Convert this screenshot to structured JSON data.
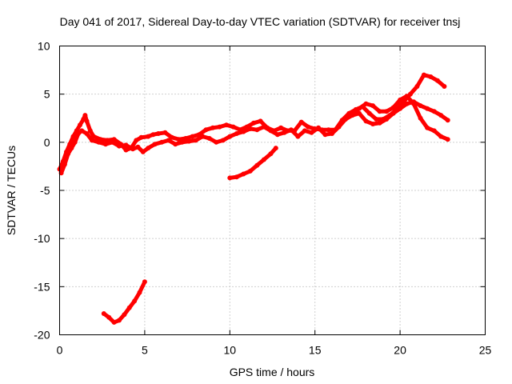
{
  "chart_data": {
    "type": "scatter",
    "title": "Day 041 of 2017, Sidereal Day-to-day VTEC variation (SDTVAR) for receiver tnsj",
    "xlabel": "GPS time / hours",
    "ylabel": "SDTVAR / TECUs",
    "xlim": [
      0,
      25
    ],
    "ylim": [
      -20,
      10
    ],
    "xticks": [
      0,
      5,
      10,
      15,
      20,
      25
    ],
    "yticks": [
      -20,
      -15,
      -10,
      -5,
      0,
      5,
      10
    ],
    "xtick_labels": [
      "0",
      "5",
      "10",
      "15",
      "20",
      "25"
    ],
    "ytick_labels": [
      "-20",
      "-15",
      "-10",
      "-5",
      "0",
      "5",
      "10"
    ],
    "grid": true,
    "marker_color": "#ff0000",
    "series": [
      {
        "name": "main-a",
        "points": [
          [
            0.0,
            -2.8
          ],
          [
            0.2,
            -2.0
          ],
          [
            0.4,
            -1.0
          ],
          [
            0.6,
            -0.2
          ],
          [
            0.8,
            0.6
          ],
          [
            1.0,
            1.2
          ],
          [
            1.2,
            1.8
          ],
          [
            1.4,
            2.4
          ],
          [
            1.5,
            2.8
          ],
          [
            1.6,
            2.2
          ],
          [
            1.8,
            1.2
          ],
          [
            2.0,
            0.6
          ],
          [
            2.4,
            0.3
          ],
          [
            2.8,
            0.2
          ],
          [
            3.2,
            0.3
          ],
          [
            3.6,
            -0.2
          ],
          [
            3.9,
            -0.8
          ],
          [
            4.2,
            -0.6
          ],
          [
            4.5,
            0.2
          ],
          [
            4.8,
            0.5
          ],
          [
            5.2,
            0.6
          ],
          [
            5.5,
            0.8
          ],
          [
            5.8,
            0.9
          ],
          [
            6.2,
            1.0
          ],
          [
            6.6,
            0.5
          ],
          [
            7.0,
            0.3
          ],
          [
            7.4,
            0.4
          ],
          [
            7.8,
            0.6
          ],
          [
            8.2,
            0.8
          ],
          [
            8.6,
            1.3
          ],
          [
            9.0,
            1.5
          ],
          [
            9.4,
            1.6
          ],
          [
            9.8,
            1.8
          ],
          [
            10.2,
            1.6
          ],
          [
            10.6,
            1.3
          ],
          [
            11.0,
            1.6
          ],
          [
            11.4,
            2.0
          ],
          [
            11.8,
            2.2
          ],
          [
            12.2,
            1.5
          ],
          [
            12.6,
            1.2
          ],
          [
            13.0,
            1.5
          ],
          [
            13.4,
            1.2
          ],
          [
            13.8,
            1.2
          ],
          [
            14.2,
            2.1
          ],
          [
            14.6,
            1.6
          ],
          [
            15.0,
            1.4
          ],
          [
            15.4,
            1.3
          ],
          [
            15.8,
            1.3
          ],
          [
            16.2,
            1.3
          ],
          [
            16.6,
            2.3
          ],
          [
            17.0,
            3.0
          ],
          [
            17.4,
            3.4
          ],
          [
            17.8,
            3.7
          ],
          [
            18.2,
            3.0
          ],
          [
            18.6,
            2.4
          ],
          [
            19.0,
            2.4
          ],
          [
            19.4,
            2.8
          ],
          [
            19.8,
            3.4
          ],
          [
            20.2,
            4.2
          ],
          [
            20.6,
            5.0
          ],
          [
            21.0,
            5.8
          ],
          [
            21.4,
            7.0
          ],
          [
            21.8,
            6.8
          ],
          [
            22.2,
            6.4
          ],
          [
            22.6,
            5.8
          ]
        ]
      },
      {
        "name": "main-b",
        "points": [
          [
            0.1,
            -3.2
          ],
          [
            0.3,
            -2.3
          ],
          [
            0.5,
            -1.2
          ],
          [
            0.7,
            -0.6
          ],
          [
            0.9,
            0.0
          ],
          [
            1.1,
            0.9
          ],
          [
            1.3,
            1.2
          ],
          [
            1.6,
            0.9
          ],
          [
            1.9,
            0.2
          ],
          [
            2.3,
            0.0
          ],
          [
            2.7,
            -0.2
          ],
          [
            3.1,
            0.0
          ],
          [
            3.5,
            -0.4
          ],
          [
            3.9,
            -0.3
          ],
          [
            4.3,
            -0.7
          ],
          [
            4.6,
            -0.5
          ],
          [
            4.9,
            -1.0
          ],
          [
            5.2,
            -0.6
          ],
          [
            5.6,
            -0.2
          ],
          [
            6.0,
            0.0
          ],
          [
            6.4,
            0.2
          ],
          [
            6.8,
            -0.2
          ],
          [
            7.2,
            0.0
          ],
          [
            7.6,
            0.1
          ],
          [
            8.0,
            0.2
          ],
          [
            8.4,
            0.6
          ],
          [
            8.8,
            0.4
          ],
          [
            9.2,
            0.0
          ],
          [
            9.6,
            0.2
          ],
          [
            10.0,
            0.6
          ],
          [
            10.4,
            0.9
          ],
          [
            10.8,
            1.1
          ],
          [
            11.2,
            1.4
          ],
          [
            11.6,
            1.3
          ],
          [
            12.0,
            1.6
          ],
          [
            12.4,
            1.2
          ],
          [
            12.8,
            0.8
          ],
          [
            13.2,
            1.0
          ],
          [
            13.6,
            1.3
          ],
          [
            14.0,
            0.6
          ],
          [
            14.4,
            1.2
          ],
          [
            14.8,
            1.0
          ],
          [
            15.2,
            1.5
          ],
          [
            15.6,
            0.8
          ],
          [
            16.0,
            0.9
          ],
          [
            16.4,
            1.6
          ],
          [
            16.8,
            2.4
          ],
          [
            17.2,
            2.8
          ],
          [
            17.6,
            3.0
          ],
          [
            18.0,
            2.2
          ],
          [
            18.4,
            1.9
          ],
          [
            18.8,
            2.0
          ],
          [
            19.2,
            2.4
          ],
          [
            19.6,
            3.0
          ],
          [
            20.0,
            3.5
          ],
          [
            20.4,
            4.0
          ],
          [
            20.8,
            4.2
          ],
          [
            21.2,
            3.8
          ],
          [
            21.6,
            3.5
          ],
          [
            22.0,
            3.2
          ],
          [
            22.4,
            2.8
          ],
          [
            22.8,
            2.3
          ]
        ]
      },
      {
        "name": "main-c",
        "points": [
          [
            17.2,
            3.0
          ],
          [
            17.6,
            3.5
          ],
          [
            18.0,
            4.0
          ],
          [
            18.4,
            3.8
          ],
          [
            18.8,
            3.2
          ],
          [
            19.2,
            3.2
          ],
          [
            19.6,
            3.6
          ],
          [
            20.0,
            4.4
          ],
          [
            20.4,
            4.8
          ],
          [
            20.8,
            4.0
          ],
          [
            21.2,
            2.5
          ],
          [
            21.6,
            1.5
          ],
          [
            22.0,
            1.2
          ],
          [
            22.4,
            0.6
          ],
          [
            22.8,
            0.3
          ]
        ]
      },
      {
        "name": "segment-mid",
        "points": [
          [
            10.0,
            -3.7
          ],
          [
            10.4,
            -3.6
          ],
          [
            10.8,
            -3.3
          ],
          [
            11.2,
            -3.0
          ],
          [
            11.6,
            -2.4
          ],
          [
            12.0,
            -1.8
          ],
          [
            12.4,
            -1.2
          ],
          [
            12.7,
            -0.6
          ]
        ]
      },
      {
        "name": "segment-low",
        "points": [
          [
            2.6,
            -17.8
          ],
          [
            2.9,
            -18.2
          ],
          [
            3.2,
            -18.7
          ],
          [
            3.5,
            -18.5
          ],
          [
            3.8,
            -17.9
          ],
          [
            4.1,
            -17.2
          ],
          [
            4.4,
            -16.5
          ],
          [
            4.7,
            -15.6
          ],
          [
            5.0,
            -14.5
          ]
        ]
      }
    ]
  }
}
